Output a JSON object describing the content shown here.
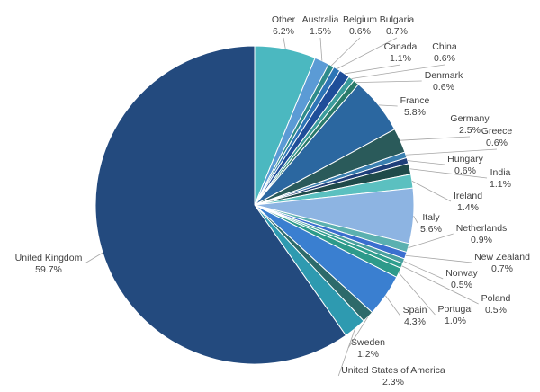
{
  "chart_data": {
    "type": "pie",
    "categories": [
      "Other",
      "Australia",
      "Belgium",
      "Bulgaria",
      "Canada",
      "China",
      "Denmark",
      "France",
      "Germany",
      "Greece",
      "Hungary",
      "India",
      "Ireland",
      "Italy",
      "Netherlands",
      "New Zealand",
      "Norway",
      "Poland",
      "Portugal",
      "Spain",
      "Sweden",
      "United States of America",
      "United Kingdom"
    ],
    "values": [
      6.2,
      1.5,
      0.6,
      0.7,
      1.1,
      0.6,
      0.6,
      5.8,
      2.5,
      0.6,
      0.6,
      1.1,
      1.4,
      5.6,
      0.9,
      0.7,
      0.5,
      0.5,
      1.0,
      4.3,
      1.2,
      2.3,
      59.7
    ],
    "value_labels": [
      "6.2%",
      "1.5%",
      "0.6%",
      "0.7%",
      "1.1%",
      "0.6%",
      "0.6%",
      "5.8%",
      "2.5%",
      "0.6%",
      "0.6%",
      "1.1%",
      "1.4%",
      "5.6%",
      "0.9%",
      "0.7%",
      "0.5%",
      "0.5%",
      "1.0%",
      "4.3%",
      "1.2%",
      "2.3%",
      "59.7%"
    ],
    "colors": [
      "#4bb8c0",
      "#5b9bd5",
      "#2e8b8b",
      "#2e75b6",
      "#1f4e99",
      "#3a9b9b",
      "#2a7a6a",
      "#2b67a0",
      "#2a5a5a",
      "#3a7fb0",
      "#1f3f7a",
      "#1f4a4a",
      "#5bc0c0",
      "#8db4e2",
      "#5bb0b0",
      "#3b6fcf",
      "#4aa0a0",
      "#2e9e8e",
      "#2d9a8a",
      "#3a7fd0",
      "#2d6a6a",
      "#2e9ab0",
      "#234a7e"
    ]
  }
}
